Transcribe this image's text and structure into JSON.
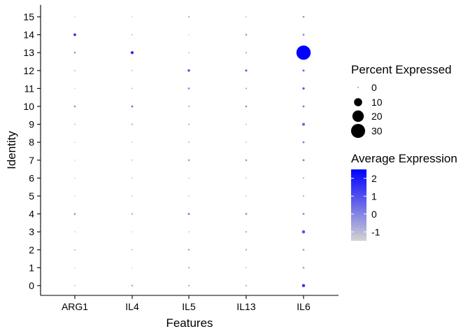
{
  "chart_data": {
    "type": "dotplot",
    "xlabel": "Features",
    "ylabel": "Identity",
    "features": [
      "ARG1",
      "IL4",
      "IL5",
      "IL13",
      "IL6"
    ],
    "identities": [
      "0",
      "1",
      "2",
      "3",
      "4",
      "5",
      "6",
      "7",
      "8",
      "9",
      "10",
      "11",
      "12",
      "13",
      "14",
      "15"
    ],
    "percent_expressed": [
      [
        0.3,
        0.5,
        0.4,
        0.4,
        1.5
      ],
      [
        0.2,
        0.2,
        0.4,
        0.3,
        0.5
      ],
      [
        0.3,
        0.3,
        0.5,
        0.4,
        0.5
      ],
      [
        0.2,
        0.2,
        0.3,
        0.4,
        1.5
      ],
      [
        0.5,
        0.4,
        0.6,
        0.5,
        0.6
      ],
      [
        0.2,
        0.3,
        0.3,
        0.3,
        0.4
      ],
      [
        0.2,
        0.3,
        0.3,
        0.3,
        0.4
      ],
      [
        0.2,
        0.3,
        0.5,
        0.5,
        0.6
      ],
      [
        0.2,
        0.2,
        0.3,
        0.3,
        0.6
      ],
      [
        0.3,
        0.4,
        0.4,
        0.3,
        1.2
      ],
      [
        0.5,
        0.6,
        0.4,
        0.5,
        0.6
      ],
      [
        0.2,
        0.3,
        0.6,
        0.4,
        0.8
      ],
      [
        0.3,
        0.3,
        0.9,
        0.7,
        0.7
      ],
      [
        0.5,
        1.3,
        0.3,
        0.4,
        31.0
      ],
      [
        1.0,
        0.3,
        0.2,
        0.5,
        0.6
      ],
      [
        0.2,
        0.2,
        0.4,
        0.3,
        0.5
      ]
    ],
    "average_expression": [
      [
        -1.2,
        -0.6,
        -0.6,
        -0.8,
        1.4
      ],
      [
        -1.3,
        -1.3,
        -0.7,
        -1.2,
        -0.4
      ],
      [
        -0.9,
        -1.0,
        -0.6,
        -0.7,
        -0.3
      ],
      [
        -1.3,
        -1.4,
        -1.3,
        -0.7,
        1.0
      ],
      [
        -0.2,
        -0.6,
        0.1,
        0.0,
        -0.2
      ],
      [
        -1.4,
        -1.3,
        -1.3,
        -1.2,
        -0.9
      ],
      [
        -1.3,
        -1.2,
        -1.3,
        -1.2,
        -0.9
      ],
      [
        -1.3,
        -1.2,
        -0.3,
        -0.3,
        0.1
      ],
      [
        -1.4,
        -1.3,
        -0.9,
        -1.4,
        0.0
      ],
      [
        -1.0,
        -0.8,
        -0.9,
        -1.1,
        0.6
      ],
      [
        0.0,
        0.4,
        -0.8,
        -0.1,
        0.2
      ],
      [
        -1.3,
        -1.0,
        -0.2,
        -0.7,
        0.9
      ],
      [
        -0.9,
        -1.1,
        1.0,
        0.8,
        0.4
      ],
      [
        -0.3,
        1.8,
        -1.2,
        -0.8,
        2.5
      ],
      [
        1.8,
        -1.0,
        -1.4,
        -0.4,
        -0.2
      ],
      [
        -1.3,
        -1.4,
        -0.8,
        -1.2,
        -0.2
      ]
    ],
    "size_legend": {
      "title": "Percent Expressed",
      "labels": [
        "0",
        "10",
        "20",
        "30"
      ],
      "values": [
        0,
        10,
        20,
        30
      ]
    },
    "color_legend": {
      "title": "Average Expression",
      "labels": [
        "2",
        "1",
        "0",
        "-1"
      ],
      "values": [
        2,
        1,
        0,
        -1
      ],
      "range": [
        -1.5,
        2.5
      ],
      "low_color": "#D3D3D3",
      "high_color": "#0000FF"
    }
  }
}
